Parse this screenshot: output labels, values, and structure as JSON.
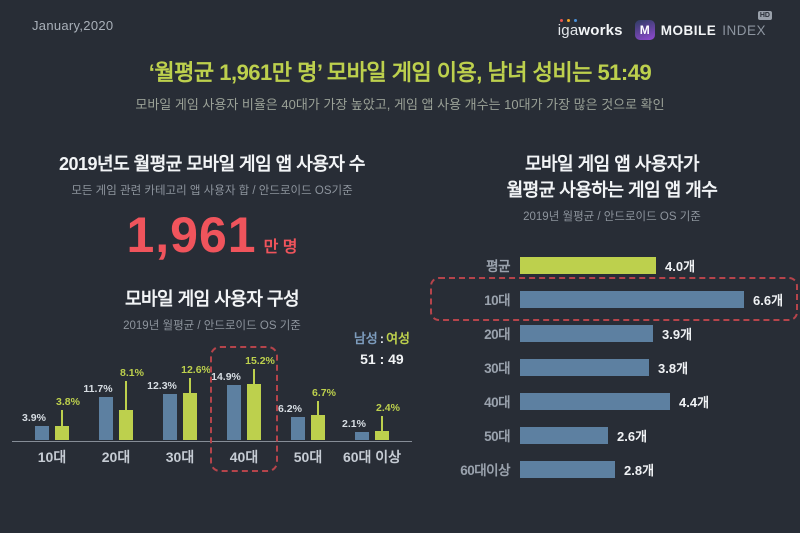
{
  "page": {
    "date_label": "January,2020"
  },
  "logos": {
    "igaworks_prefix": "iga",
    "igaworks_suffix": "works",
    "mobileindex_m": "M",
    "mobileindex_name_bold": "MOBILE",
    "mobileindex_name_light": "INDEX",
    "hd_badge": "HD"
  },
  "headline": {
    "title": "‘월평균 1,961만 명’ 모바일 게임 이용, 남녀 성비는 51:49",
    "subtitle": "모바일 게임 사용자 비율은 40대가 가장 높았고, 게임 앱 사용 개수는 10대가 가장 많은 것으로 확인"
  },
  "left_panel": {
    "users_title": "2019년도 월평균 모바일 게임 앱 사용자 수",
    "users_subtitle": "모든 게임 관련 카테고리 앱 사용자 합 / 안드로이드 OS기준",
    "users_value": "1,961",
    "users_unit": "만 명",
    "chart_title": "모바일 게임 사용자 구성",
    "chart_subtitle": "2019년 월평균 / 안드로이드 OS 기준",
    "legend": {
      "male": "남성",
      "separator": ":",
      "female": "여성",
      "ratio": "51 : 49"
    }
  },
  "right_panel": {
    "title_line1": "모바일 게임 앱 사용자가",
    "title_line2": "월평균 사용하는 게임 앱 개수",
    "subtitle": "2019년 월평균 / 안드로이드 OS 기준"
  },
  "colors": {
    "background": "#282d36",
    "title_green": "#bdd04d",
    "male_blue": "#5d80a1",
    "female_green": "#bdd04d",
    "accent_red": "#f0545c",
    "highlight_dash": "#b5444b",
    "text_white": "#eef0f3",
    "text_gray": "#8d949d"
  },
  "chart_data": [
    {
      "type": "bar",
      "orientation": "vertical-grouped",
      "title": "모바일 게임 사용자 구성",
      "subtitle": "2019년 월평균 / 안드로이드 OS 기준",
      "categories": [
        "10대",
        "20대",
        "30대",
        "40대",
        "50대",
        "60대 이상"
      ],
      "series": [
        {
          "name": "남성",
          "color": "#5d80a1",
          "values": [
            3.9,
            11.7,
            12.3,
            14.9,
            6.2,
            2.1
          ]
        },
        {
          "name": "여성",
          "color": "#bdd04d",
          "values": [
            3.8,
            8.1,
            12.6,
            15.2,
            6.7,
            2.4
          ]
        }
      ],
      "value_suffix": "%",
      "ylim": [
        0,
        16
      ],
      "grid": false,
      "legend_position": "top-right",
      "highlighted_category": "40대",
      "ratio_note": "51 : 49"
    },
    {
      "type": "bar",
      "orientation": "horizontal",
      "title": "모바일 게임 앱 사용자가 월평균 사용하는 게임 앱 개수",
      "subtitle": "2019년 월평균 / 안드로이드 OS 기준",
      "categories": [
        "평균",
        "10대",
        "20대",
        "30대",
        "40대",
        "50대",
        "60대이상"
      ],
      "values": [
        4.0,
        6.6,
        3.9,
        3.8,
        4.4,
        2.6,
        2.8
      ],
      "value_suffix": "개",
      "xlim": [
        0,
        7
      ],
      "grid": false,
      "average_category": "평균",
      "highlighted_category": "10대"
    }
  ]
}
